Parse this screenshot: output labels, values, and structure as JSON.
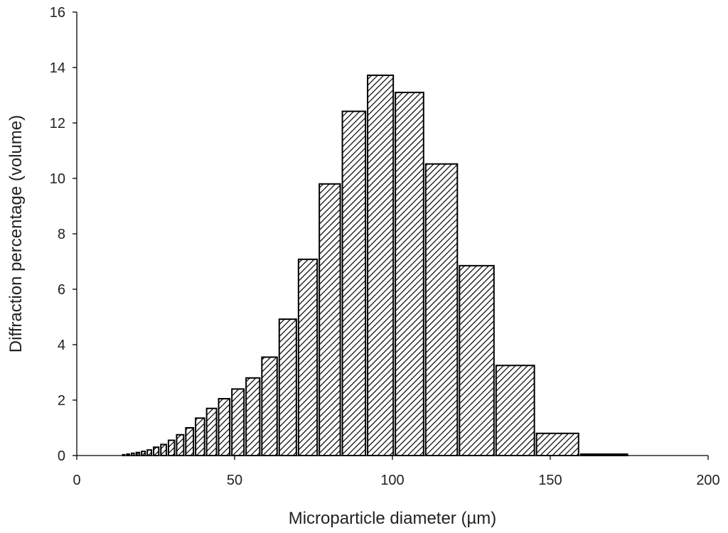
{
  "chart_data": {
    "type": "bar",
    "title": "",
    "xlabel": "Microparticle diameter (µm)",
    "ylabel": "Diffraction percentage (volume)",
    "xlim": [
      0,
      200
    ],
    "ylim": [
      0,
      16
    ],
    "xticks": [
      "0",
      "50",
      "100",
      "150",
      "200"
    ],
    "yticks": [
      "0",
      "2",
      "4",
      "6",
      "8",
      "10",
      "12",
      "14",
      "16"
    ],
    "grid": false,
    "legend": "none",
    "bar_fill": "diagonal hatch",
    "bars": [
      {
        "x0": 14.2,
        "x1": 15.5,
        "value": 0.03
      },
      {
        "x0": 15.5,
        "x1": 17.0,
        "value": 0.05
      },
      {
        "x0": 17.0,
        "x1": 18.5,
        "value": 0.08
      },
      {
        "x0": 18.5,
        "x1": 20.2,
        "value": 0.11
      },
      {
        "x0": 20.2,
        "x1": 22.0,
        "value": 0.15
      },
      {
        "x0": 22.0,
        "x1": 24.0,
        "value": 0.2
      },
      {
        "x0": 24.0,
        "x1": 26.3,
        "value": 0.3
      },
      {
        "x0": 26.3,
        "x1": 28.7,
        "value": 0.4
      },
      {
        "x0": 28.7,
        "x1": 31.3,
        "value": 0.55
      },
      {
        "x0": 31.3,
        "x1": 34.2,
        "value": 0.75
      },
      {
        "x0": 34.2,
        "x1": 37.3,
        "value": 1.0
      },
      {
        "x0": 37.3,
        "x1": 40.8,
        "value": 1.35
      },
      {
        "x0": 40.8,
        "x1": 44.6,
        "value": 1.7
      },
      {
        "x0": 44.6,
        "x1": 48.8,
        "value": 2.05
      },
      {
        "x0": 48.8,
        "x1": 53.3,
        "value": 2.4
      },
      {
        "x0": 53.3,
        "x1": 58.3,
        "value": 2.8
      },
      {
        "x0": 58.3,
        "x1": 63.8,
        "value": 3.55
      },
      {
        "x0": 63.8,
        "x1": 69.9,
        "value": 4.92
      },
      {
        "x0": 69.9,
        "x1": 76.5,
        "value": 7.08
      },
      {
        "x0": 76.5,
        "x1": 83.8,
        "value": 9.8
      },
      {
        "x0": 83.8,
        "x1": 91.8,
        "value": 12.42
      },
      {
        "x0": 91.8,
        "x1": 100.6,
        "value": 13.72
      },
      {
        "x0": 100.6,
        "x1": 110.2,
        "value": 13.1
      },
      {
        "x0": 110.2,
        "x1": 120.9,
        "value": 10.52
      },
      {
        "x0": 120.9,
        "x1": 132.5,
        "value": 6.85
      },
      {
        "x0": 132.5,
        "x1": 145.3,
        "value": 3.25
      },
      {
        "x0": 145.3,
        "x1": 159.3,
        "value": 0.8
      },
      {
        "x0": 159.3,
        "x1": 174.8,
        "value": 0.05
      }
    ]
  }
}
